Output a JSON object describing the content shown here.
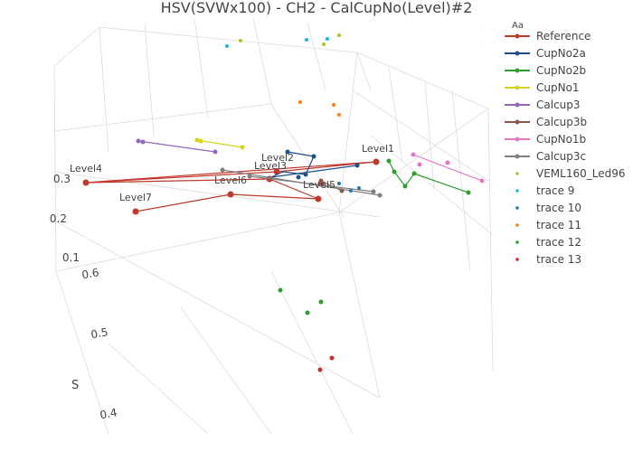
{
  "chart_data": {
    "type": "scatter3d",
    "title": "HSV(SVWx100) - CH2 - CalCupNo(Level)#2",
    "axis_labels": {
      "s": "S"
    },
    "ticks_v": [
      "0.3",
      "0.2",
      "0.1"
    ],
    "ticks_s": [
      "0.6",
      "0.5",
      "0.4"
    ],
    "legend": {
      "title": "Aa",
      "placement": "right",
      "entries": [
        {
          "name": "Reference",
          "color": "#c0392b",
          "mode": "lines+markers"
        },
        {
          "name": "CupNo2a",
          "color": "#1f4e8c",
          "mode": "lines+markers"
        },
        {
          "name": "CupNo2b",
          "color": "#2ca02c",
          "mode": "lines+markers"
        },
        {
          "name": "CupNo1",
          "color": "#d4d41c",
          "mode": "lines+markers"
        },
        {
          "name": "Calcup3",
          "color": "#9467bd",
          "mode": "lines+markers"
        },
        {
          "name": "Calcup3b",
          "color": "#8c564b",
          "mode": "lines+markers"
        },
        {
          "name": "CupNo1b",
          "color": "#e377c2",
          "mode": "lines+markers"
        },
        {
          "name": "Calcup3c",
          "color": "#7f7f7f",
          "mode": "lines+markers"
        },
        {
          "name": "VEML160_Led96",
          "color": "#bcbd22",
          "mode": "markers"
        },
        {
          "name": "trace 9",
          "color": "#17becf",
          "mode": "markers"
        },
        {
          "name": "trace 10",
          "color": "#1f77b4",
          "mode": "markers"
        },
        {
          "name": "trace 11",
          "color": "#ff7f0e",
          "mode": "markers"
        },
        {
          "name": "trace 12",
          "color": "#2ca02c",
          "mode": "markers"
        },
        {
          "name": "trace 13",
          "color": "#d62728",
          "mode": "markers"
        }
      ]
    },
    "point_labels": [
      "Level1",
      "Level2",
      "Level3",
      "Level4",
      "Level5",
      "Level6",
      "Level7"
    ]
  }
}
